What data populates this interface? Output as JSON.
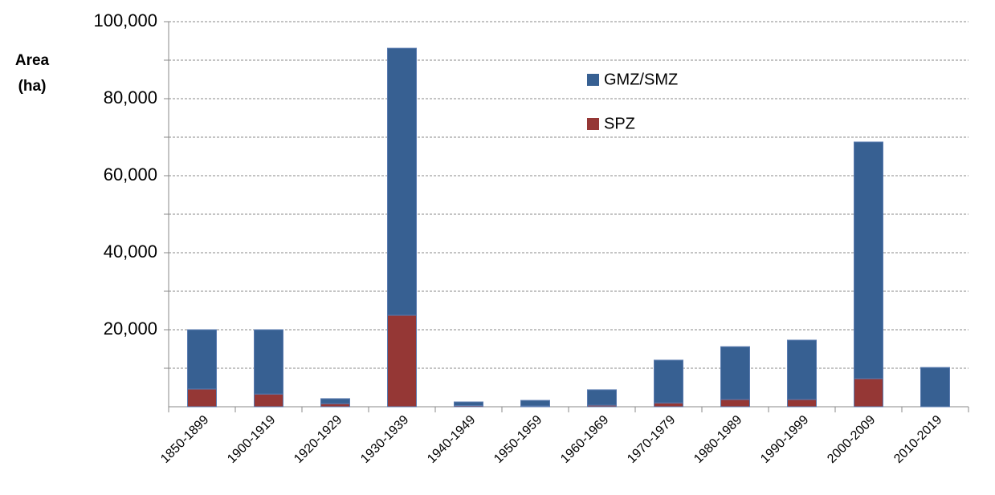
{
  "chart_data": {
    "type": "stacked_bar",
    "y_label": [
      "Area",
      "(ha)"
    ],
    "categories": [
      "1850-1899",
      "1900-1919",
      "1920-1929",
      "1930-1939",
      "1940-1949",
      "1950-1959",
      "1960-1969",
      "1970-1979",
      "1980-1989",
      "1990-1999",
      "2000-2009",
      "2010-2019"
    ],
    "series": [
      {
        "name": "SPZ",
        "color": "#953735",
        "values": [
          4600,
          3300,
          800,
          23750,
          300,
          200,
          400,
          1000,
          1900,
          1900,
          7300,
          0
        ]
      },
      {
        "name": "GMZ/SMZ",
        "color": "#376092",
        "values": [
          15400,
          16700,
          1300,
          69350,
          950,
          1450,
          4000,
          11100,
          13700,
          15400,
          61450,
          10200
        ]
      }
    ],
    "ylim": [
      0,
      100000
    ],
    "yticks": [
      {
        "value": 20000,
        "label": "20,000"
      },
      {
        "value": 40000,
        "label": "40,000"
      },
      {
        "value": 60000,
        "label": "60,000"
      },
      {
        "value": 80000,
        "label": "80,000"
      },
      {
        "value": 100000,
        "label": "100,000"
      }
    ],
    "minor_yticks": [
      10000,
      30000,
      50000,
      70000,
      90000
    ],
    "grid": true
  }
}
